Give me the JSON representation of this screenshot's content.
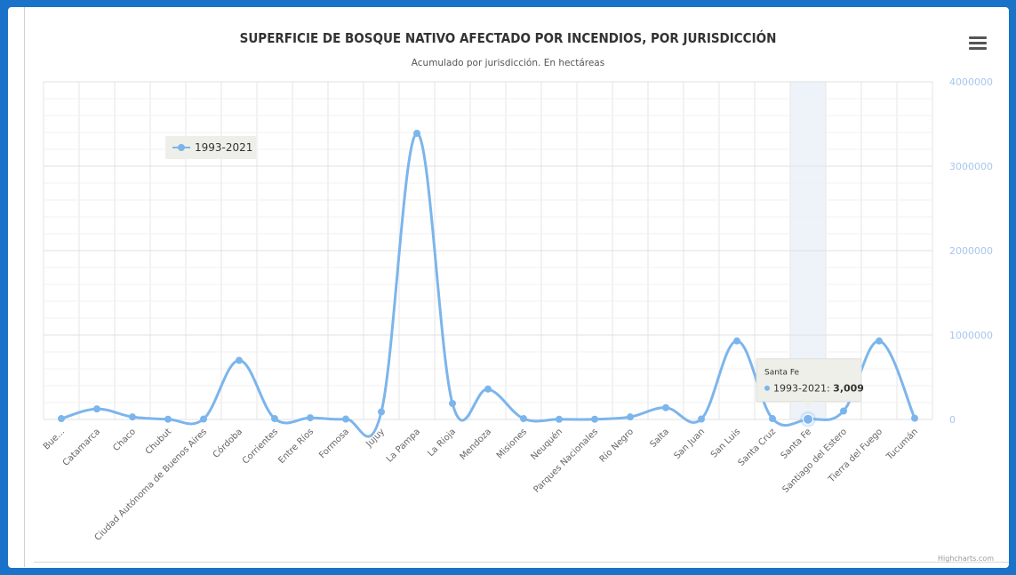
{
  "header": {
    "title": "SUPERFICIE DE BOSQUE NATIVO AFECTADO POR INCENDIOS, POR JURISDICCIÓN",
    "subtitle": "Acumulado por jurisdicción. En hectáreas",
    "menu_icon": "hamburger-menu-icon"
  },
  "credits": "Highcharts.com",
  "colors": {
    "series": "#7cb5ec",
    "frame": "#1a73c9",
    "axis_labels": "#a8c6ee",
    "grid": "#e6e6e6",
    "hover_band": "#eef3f9"
  },
  "chart_data": {
    "type": "line",
    "curve": "spline",
    "title": "SUPERFICIE DE BOSQUE NATIVO AFECTADO POR INCENDIOS, POR JURISDICCIÓN",
    "subtitle": "Acumulado por jurisdicción. En hectáreas",
    "categories": [
      "Bue...",
      "Catamarca",
      "Chaco",
      "Chubut",
      "Ciudad Autónoma de Buenos Aires",
      "Córdoba",
      "Corrientes",
      "Entre Ríos",
      "Formosa",
      "Jujuy",
      "La Pampa",
      "La Rioja",
      "Mendoza",
      "Misiones",
      "Neuquén",
      "Parques Nacionales",
      "Río Negro",
      "Salta",
      "San Juan",
      "San Luis",
      "Santa Cruz",
      "Santa Fe",
      "Santiago del Estero",
      "Tierra del Fuego",
      "Tucumán"
    ],
    "series": [
      {
        "name": "1993-2021",
        "values": [
          10000,
          125000,
          30000,
          3000,
          5000,
          700000,
          10000,
          20000,
          5000,
          90000,
          3390000,
          190000,
          360000,
          10000,
          2000,
          3000,
          30000,
          140000,
          5000,
          930000,
          10000,
          3009,
          100000,
          930000,
          15000
        ]
      }
    ],
    "y_axis": {
      "position": "right",
      "min": 0,
      "max": 4000000,
      "ticks": [
        "0",
        "1000000",
        "2000000",
        "3000000",
        "4000000"
      ],
      "tick_values": [
        0,
        1000000,
        2000000,
        3000000,
        4000000
      ]
    },
    "grid": true,
    "legend": {
      "placement": "top-left-inside",
      "items": [
        "1993-2021"
      ]
    },
    "tooltip": {
      "category": "Santa Fe",
      "series": "1993-2021",
      "label": "1993-2021: ",
      "value_text": "3,009"
    },
    "highlight_index": 21
  }
}
